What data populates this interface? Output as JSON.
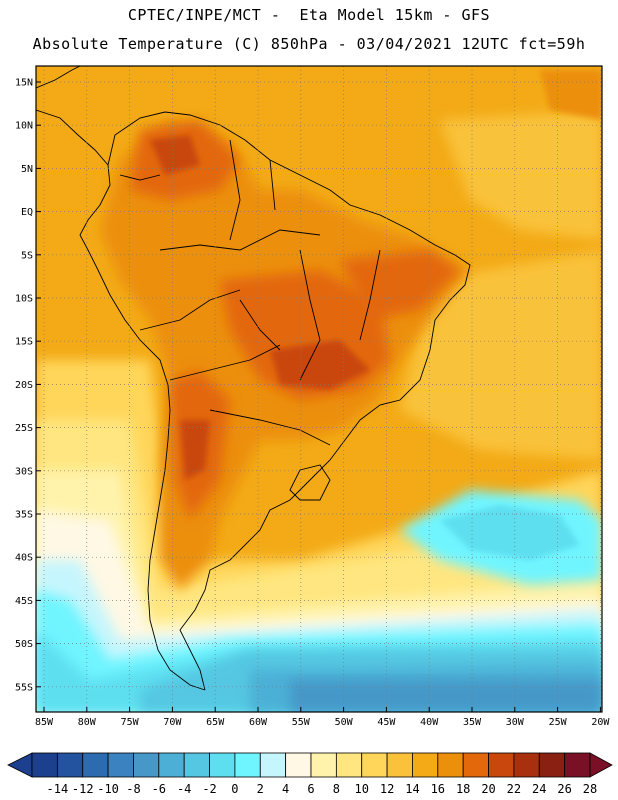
{
  "header": {
    "line1": "CPTEC/INPE/MCT -  Eta Model 15km - GFS",
    "line2": "Absolute Temperature (C) 850hPa - 03/04/2021 12UTC fct=59h"
  },
  "map": {
    "lat_labels": [
      "15N",
      "10N",
      "5N",
      "EQ",
      "5S",
      "10S",
      "15S",
      "20S",
      "25S",
      "30S",
      "35S",
      "40S",
      "45S",
      "50S",
      "55S"
    ],
    "lon_labels": [
      "85W",
      "80W",
      "75W",
      "70W",
      "65W",
      "60W",
      "55W",
      "50W",
      "45W",
      "40W",
      "35W",
      "30W",
      "25W",
      "20W"
    ]
  },
  "colorbar": {
    "labels": [
      "-14",
      "-12",
      "-10",
      "-8",
      "-6",
      "-4",
      "-2",
      "0",
      "2",
      "4",
      "6",
      "8",
      "10",
      "12",
      "14",
      "16",
      "18",
      "20",
      "22",
      "24",
      "26",
      "28"
    ],
    "colors": [
      "#1c3f8e",
      "#23539f",
      "#2d6bb0",
      "#3a82c0",
      "#4598c8",
      "#4cb0d6",
      "#55c7e2",
      "#5ddff0",
      "#6ff5ff",
      "#c6f6fd",
      "#fff8e4",
      "#fff3ab",
      "#ffe680",
      "#ffd65a",
      "#f9c23a",
      "#f3aa16",
      "#ec8f0a",
      "#e3670b",
      "#c9460d",
      "#a9300f",
      "#8a2011",
      "#7a1025"
    ]
  }
}
